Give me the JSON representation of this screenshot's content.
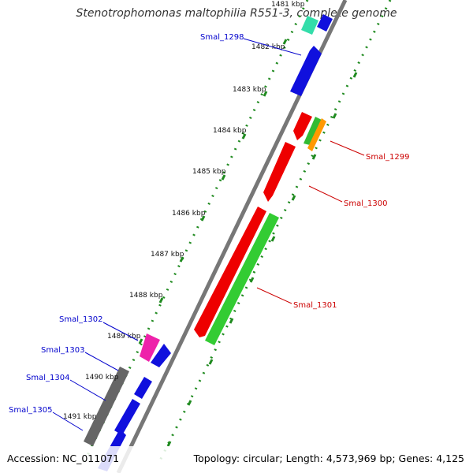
{
  "title": "Stenotrophomonas maltophilia R551-3, complete genome",
  "footer": {
    "accession": "Accession: NC_011071",
    "topology": "Topology: circular; Length: 4,573,969 bp; Genes: 4,125"
  },
  "colors": {
    "backbone": "#777777",
    "dotted_track": "#1f8a1f",
    "forward_label": "#cc0000",
    "reverse_label": "#0000cc"
  },
  "kbp_labels": [
    "1481 kbp",
    "1482 kbp",
    "1483 kbp",
    "1484 kbp",
    "1485 kbp",
    "1486 kbp",
    "1487 kbp",
    "1488 kbp",
    "1489 kbp",
    "1490 kbp",
    "1491 kbp"
  ],
  "gene_labels": {
    "smal_1298": "Smal_1298",
    "smal_1299": "Smal_1299",
    "smal_1300": "Smal_1300",
    "smal_1301": "Smal_1301",
    "smal_1302": "Smal_1302",
    "smal_1303": "Smal_1303",
    "smal_1304": "Smal_1304",
    "smal_1305": "Smal_1305"
  }
}
